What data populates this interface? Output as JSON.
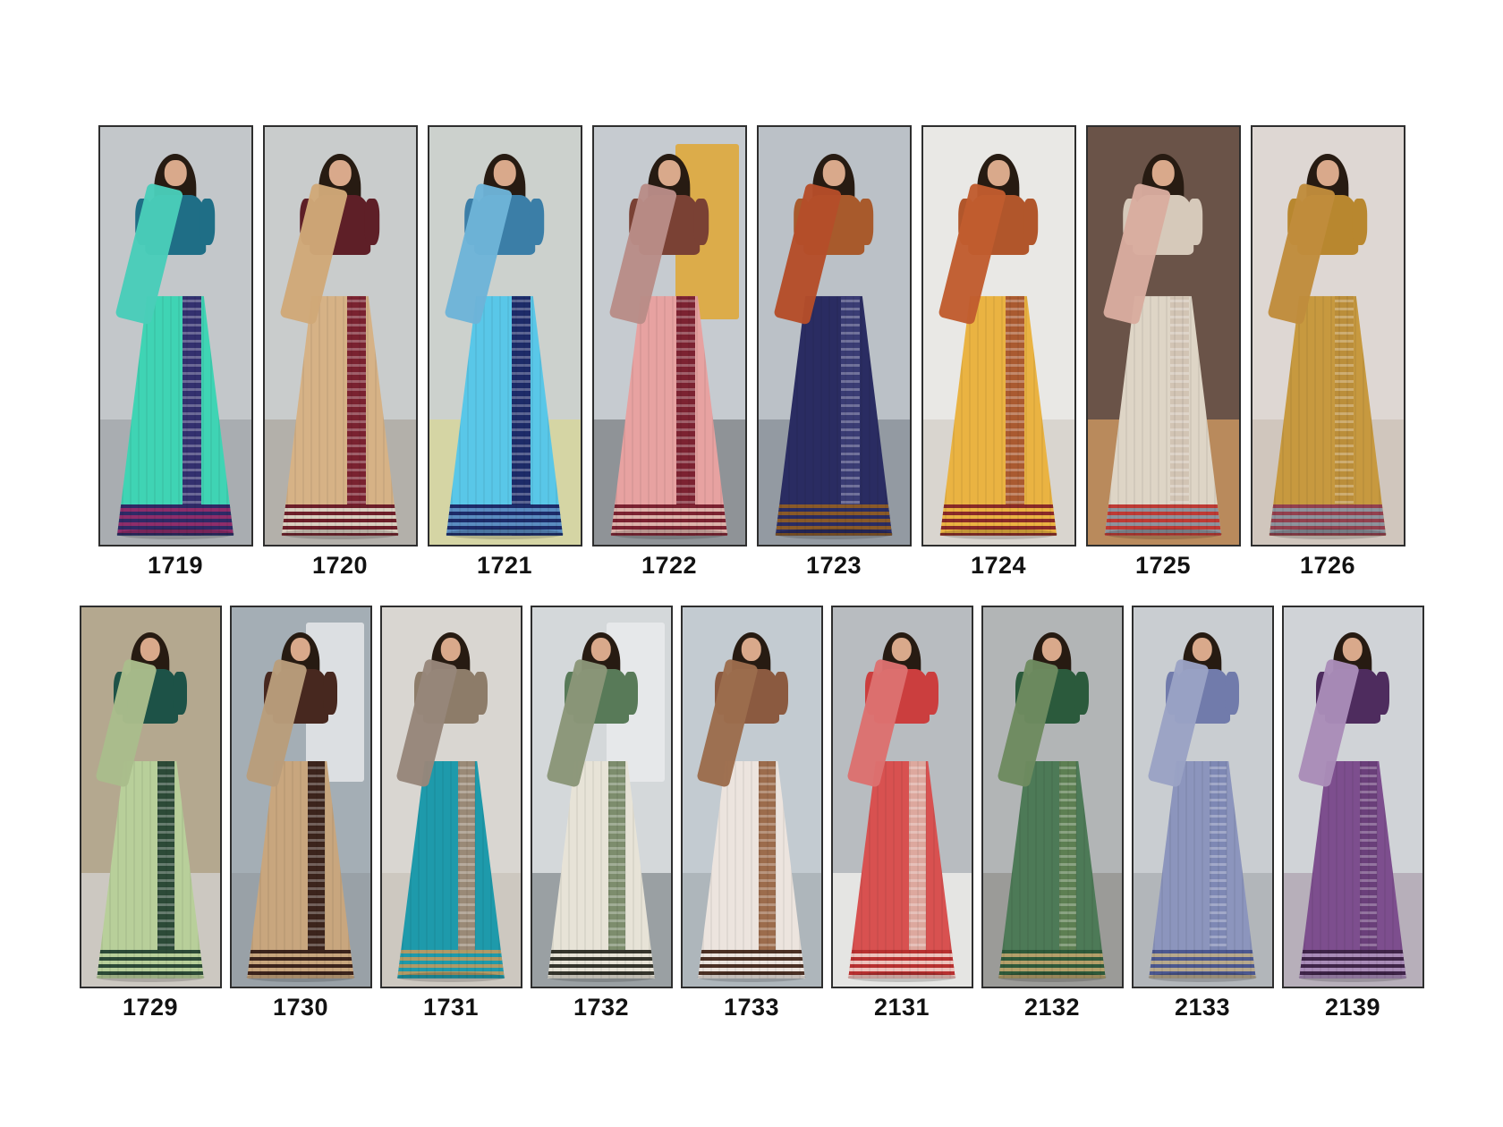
{
  "page": {
    "background": "#ffffff",
    "frame": "#2e2e2e",
    "label": "#121212"
  },
  "rows": [
    {
      "name": "top",
      "products": [
        {
          "code": "1719",
          "colors": {
            "bg1": "#c3c7ca",
            "bg2": "#a9adb1",
            "saree": "#3fd4b4",
            "pallu": "#49cdb9",
            "blouse": "#1f6e86",
            "band": "#33306f",
            "hem": "#2e2a66",
            "hem2": "#8e2d6a"
          }
        },
        {
          "code": "1720",
          "colors": {
            "bg1": "#c9cccc",
            "bg2": "#b3b0aa",
            "saree": "#d6b286",
            "pallu": "#cfa878",
            "blouse": "#5e1f27",
            "band": "#7a2230",
            "hem": "#6e1f2a",
            "hem2": "#d8cfc0"
          }
        },
        {
          "code": "1721",
          "colors": {
            "bg1": "#ccd1cd",
            "bg2": "#d5d5a4",
            "saree": "#59c7e8",
            "pallu": "#6db4d8",
            "blouse": "#3b7ea7",
            "band": "#1d2b69",
            "hem": "#1d2b69",
            "hem2": "#5a8cc0"
          }
        },
        {
          "code": "1722",
          "colors": {
            "bg1": "#c6cbd0",
            "bg2": "#8f9397",
            "accent": "#dfa733",
            "saree": "#e7a2a1",
            "pallu": "#b98c87",
            "blouse": "#7a4134",
            "band": "#7c2231",
            "hem": "#7c2231",
            "hem2": "#dcb3ab"
          }
        },
        {
          "code": "1723",
          "colors": {
            "bg1": "#bbc1c7",
            "bg2": "#939aa2",
            "saree": "#2a2c62",
            "pallu": "#b54d29",
            "blouse": "#a85a2c",
            "band": "#3a3c74",
            "hem": "#8a5a28",
            "hem2": "#2a2c62"
          }
        },
        {
          "code": "1724",
          "colors": {
            "bg1": "#e9e8e5",
            "bg2": "#d9d5cf",
            "saree": "#eab342",
            "pallu": "#c05c2e",
            "blouse": "#b1562b",
            "band": "#aa5a30",
            "hem": "#8a2a28",
            "hem2": "#eab342"
          }
        },
        {
          "code": "1725",
          "colors": {
            "bg1": "#6a5348",
            "bg2": "#b98a5c",
            "saree": "#ded5c6",
            "pallu": "#d9ac9f",
            "blouse": "#d6c9ba",
            "band": "#d2c4b4",
            "hem": "#bf3a34",
            "hem2": "#8d939c"
          }
        },
        {
          "code": "1726",
          "colors": {
            "bg1": "#ded7d3",
            "bg2": "#d0c6bd",
            "saree": "#c7993f",
            "pallu": "#c08c3c",
            "blouse": "#b8872f",
            "band": "#bb8e3a",
            "hem": "#93404e",
            "hem2": "#8d939c"
          }
        }
      ]
    },
    {
      "name": "bottom",
      "products": [
        {
          "code": "1729",
          "colors": {
            "bg1": "#b4a88f",
            "bg2": "#ccc8c1",
            "saree": "#b8cf9a",
            "pallu": "#a9bd8b",
            "blouse": "#1d5247",
            "band": "#2c4a37",
            "hem": "#2c4a37",
            "hem2": "#b8cf9a"
          }
        },
        {
          "code": "1730",
          "colors": {
            "bg1": "#a4aeb5",
            "bg2": "#99a1a7",
            "accent": "#e6e8ea",
            "saree": "#c8a67e",
            "pallu": "#b99d7b",
            "blouse": "#47281f",
            "band": "#3c241c",
            "hem": "#3c241c",
            "hem2": "#c8a67e"
          }
        },
        {
          "code": "1731",
          "colors": {
            "bg1": "#d9d6d1",
            "bg2": "#cdc8c0",
            "saree": "#1e9aab",
            "pallu": "#97867a",
            "blouse": "#8d7c69",
            "band": "#9a8a77",
            "hem": "#b09a66",
            "hem2": "#1e9aab"
          }
        },
        {
          "code": "1732",
          "colors": {
            "bg1": "#d4d8da",
            "bg2": "#9aa0a3",
            "accent": "#e9ebec",
            "saree": "#e7e3d7",
            "pallu": "#8a9678",
            "blouse": "#587a58",
            "band": "#7d8d6d",
            "hem": "#35352c",
            "hem2": "#e7e3d7"
          }
        },
        {
          "code": "1733",
          "colors": {
            "bg1": "#c3cbd1",
            "bg2": "#aeb6bb",
            "saree": "#ece4de",
            "pallu": "#9c6c4c",
            "blouse": "#8b5a40",
            "band": "#9c6c4c",
            "hem": "#4b3024",
            "hem2": "#ece4de"
          }
        },
        {
          "code": "2131",
          "colors": {
            "bg1": "#b8bcc0",
            "bg2": "#e5e5e3",
            "saree": "#d85150",
            "pallu": "#dc7170",
            "blouse": "#cb3e3e",
            "band": "#dda89e",
            "hem": "#b83030",
            "hem2": "#eec2bc"
          }
        },
        {
          "code": "2132",
          "colors": {
            "bg1": "#b2b5b6",
            "bg2": "#9b9b98",
            "saree": "#4d7a57",
            "pallu": "#6d8a5f",
            "blouse": "#2b5a3c",
            "band": "#5d7f52",
            "hem": "#2f5a3a",
            "hem2": "#b5a06a"
          }
        },
        {
          "code": "2133",
          "colors": {
            "bg1": "#c9cdd1",
            "bg2": "#b2b6ba",
            "saree": "#8c95bd",
            "pallu": "#9aa2c4",
            "blouse": "#717bab",
            "band": "#7e88b4",
            "hem": "#4c5890",
            "hem2": "#b8a98c"
          }
        },
        {
          "code": "2139",
          "colors": {
            "bg1": "#d0d3d7",
            "bg2": "#b7afba",
            "saree": "#7d4e8e",
            "pallu": "#a98cb8",
            "blouse": "#4e2c5e",
            "band": "#6a3f7a",
            "hem": "#3f2449",
            "hem2": "#a98cb8"
          }
        }
      ]
    }
  ]
}
